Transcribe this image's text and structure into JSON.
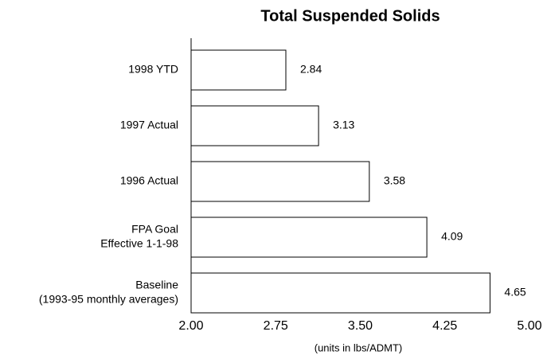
{
  "chart_data": {
    "type": "barh",
    "title": "Total Suspended Solids",
    "categories": [
      [
        "1998 YTD"
      ],
      [
        "1997 Actual"
      ],
      [
        "1996 Actual"
      ],
      [
        "FPA Goal",
        "Effective 1-1-98"
      ],
      [
        "Baseline",
        "(1993-95 monthly averages)"
      ]
    ],
    "values": [
      2.84,
      3.13,
      3.58,
      4.09,
      4.65
    ],
    "color": "#ffffff",
    "xlim": [
      2,
      5
    ],
    "xticks": [
      {
        "value": 2,
        "label": "2.00"
      },
      2.75,
      {
        "value": 3.5,
        "label": "3.50"
      },
      4.25,
      {
        "value": 5,
        "label": "5.00"
      }
    ],
    "xlabel": "(units in lbs/ADMT)"
  }
}
